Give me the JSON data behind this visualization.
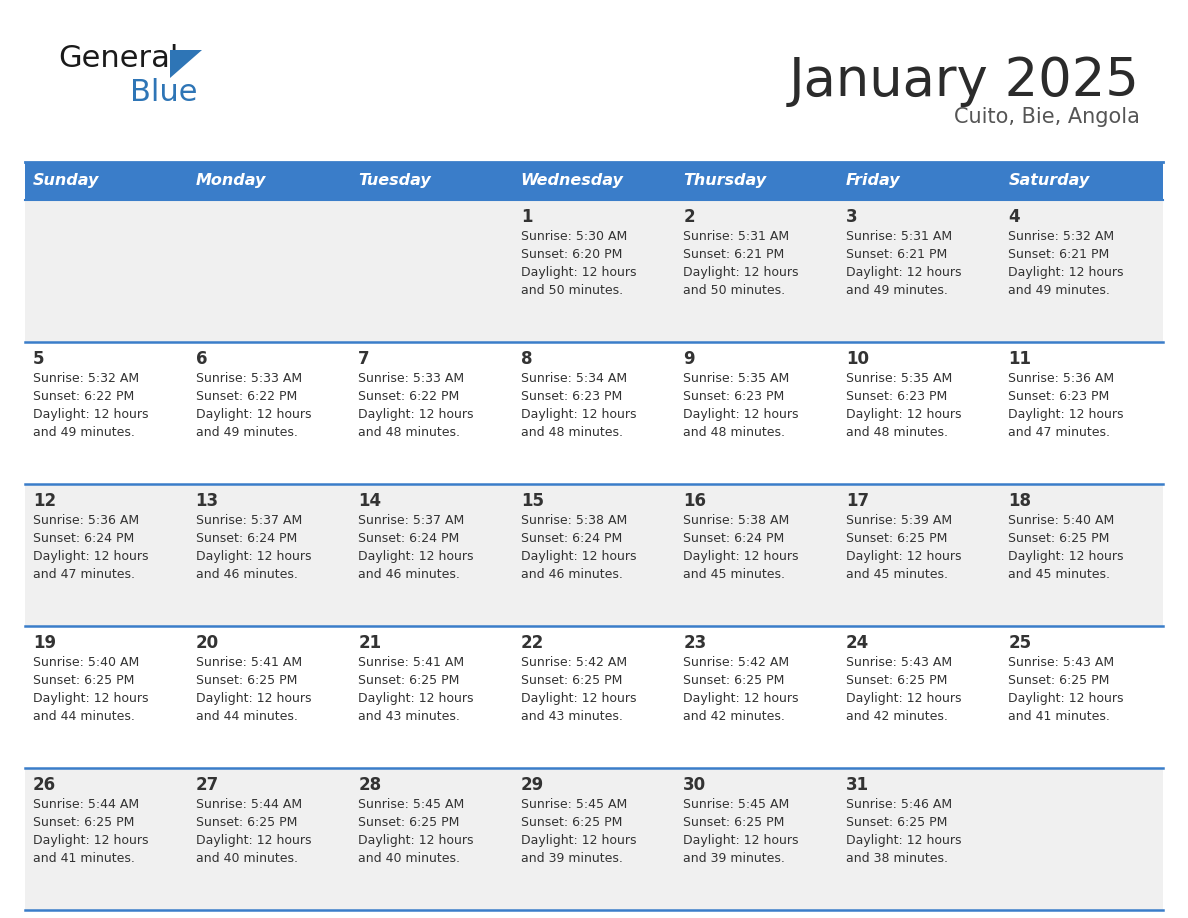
{
  "title": "January 2025",
  "subtitle": "Cuito, Bie, Angola",
  "days_of_week": [
    "Sunday",
    "Monday",
    "Tuesday",
    "Wednesday",
    "Thursday",
    "Friday",
    "Saturday"
  ],
  "header_bg": "#3A7DC9",
  "header_text": "#FFFFFF",
  "row_bg_odd": "#F0F0F0",
  "row_bg_even": "#FFFFFF",
  "cell_text": "#333333",
  "grid_line": "#3A7DC9",
  "title_color": "#2B2B2B",
  "subtitle_color": "#555555",
  "logo_general_color": "#1A1A1A",
  "logo_blue_color": "#2E75B6",
  "logo_triangle_color": "#2E75B6",
  "calendar_data": [
    [
      null,
      null,
      null,
      {
        "day": 1,
        "sunrise": "5:30 AM",
        "sunset": "6:20 PM",
        "daylight_hours": 12,
        "daylight_minutes": 50
      },
      {
        "day": 2,
        "sunrise": "5:31 AM",
        "sunset": "6:21 PM",
        "daylight_hours": 12,
        "daylight_minutes": 50
      },
      {
        "day": 3,
        "sunrise": "5:31 AM",
        "sunset": "6:21 PM",
        "daylight_hours": 12,
        "daylight_minutes": 49
      },
      {
        "day": 4,
        "sunrise": "5:32 AM",
        "sunset": "6:21 PM",
        "daylight_hours": 12,
        "daylight_minutes": 49
      }
    ],
    [
      {
        "day": 5,
        "sunrise": "5:32 AM",
        "sunset": "6:22 PM",
        "daylight_hours": 12,
        "daylight_minutes": 49
      },
      {
        "day": 6,
        "sunrise": "5:33 AM",
        "sunset": "6:22 PM",
        "daylight_hours": 12,
        "daylight_minutes": 49
      },
      {
        "day": 7,
        "sunrise": "5:33 AM",
        "sunset": "6:22 PM",
        "daylight_hours": 12,
        "daylight_minutes": 48
      },
      {
        "day": 8,
        "sunrise": "5:34 AM",
        "sunset": "6:23 PM",
        "daylight_hours": 12,
        "daylight_minutes": 48
      },
      {
        "day": 9,
        "sunrise": "5:35 AM",
        "sunset": "6:23 PM",
        "daylight_hours": 12,
        "daylight_minutes": 48
      },
      {
        "day": 10,
        "sunrise": "5:35 AM",
        "sunset": "6:23 PM",
        "daylight_hours": 12,
        "daylight_minutes": 48
      },
      {
        "day": 11,
        "sunrise": "5:36 AM",
        "sunset": "6:23 PM",
        "daylight_hours": 12,
        "daylight_minutes": 47
      }
    ],
    [
      {
        "day": 12,
        "sunrise": "5:36 AM",
        "sunset": "6:24 PM",
        "daylight_hours": 12,
        "daylight_minutes": 47
      },
      {
        "day": 13,
        "sunrise": "5:37 AM",
        "sunset": "6:24 PM",
        "daylight_hours": 12,
        "daylight_minutes": 46
      },
      {
        "day": 14,
        "sunrise": "5:37 AM",
        "sunset": "6:24 PM",
        "daylight_hours": 12,
        "daylight_minutes": 46
      },
      {
        "day": 15,
        "sunrise": "5:38 AM",
        "sunset": "6:24 PM",
        "daylight_hours": 12,
        "daylight_minutes": 46
      },
      {
        "day": 16,
        "sunrise": "5:38 AM",
        "sunset": "6:24 PM",
        "daylight_hours": 12,
        "daylight_minutes": 45
      },
      {
        "day": 17,
        "sunrise": "5:39 AM",
        "sunset": "6:25 PM",
        "daylight_hours": 12,
        "daylight_minutes": 45
      },
      {
        "day": 18,
        "sunrise": "5:40 AM",
        "sunset": "6:25 PM",
        "daylight_hours": 12,
        "daylight_minutes": 45
      }
    ],
    [
      {
        "day": 19,
        "sunrise": "5:40 AM",
        "sunset": "6:25 PM",
        "daylight_hours": 12,
        "daylight_minutes": 44
      },
      {
        "day": 20,
        "sunrise": "5:41 AM",
        "sunset": "6:25 PM",
        "daylight_hours": 12,
        "daylight_minutes": 44
      },
      {
        "day": 21,
        "sunrise": "5:41 AM",
        "sunset": "6:25 PM",
        "daylight_hours": 12,
        "daylight_minutes": 43
      },
      {
        "day": 22,
        "sunrise": "5:42 AM",
        "sunset": "6:25 PM",
        "daylight_hours": 12,
        "daylight_minutes": 43
      },
      {
        "day": 23,
        "sunrise": "5:42 AM",
        "sunset": "6:25 PM",
        "daylight_hours": 12,
        "daylight_minutes": 42
      },
      {
        "day": 24,
        "sunrise": "5:43 AM",
        "sunset": "6:25 PM",
        "daylight_hours": 12,
        "daylight_minutes": 42
      },
      {
        "day": 25,
        "sunrise": "5:43 AM",
        "sunset": "6:25 PM",
        "daylight_hours": 12,
        "daylight_minutes": 41
      }
    ],
    [
      {
        "day": 26,
        "sunrise": "5:44 AM",
        "sunset": "6:25 PM",
        "daylight_hours": 12,
        "daylight_minutes": 41
      },
      {
        "day": 27,
        "sunrise": "5:44 AM",
        "sunset": "6:25 PM",
        "daylight_hours": 12,
        "daylight_minutes": 40
      },
      {
        "day": 28,
        "sunrise": "5:45 AM",
        "sunset": "6:25 PM",
        "daylight_hours": 12,
        "daylight_minutes": 40
      },
      {
        "day": 29,
        "sunrise": "5:45 AM",
        "sunset": "6:25 PM",
        "daylight_hours": 12,
        "daylight_minutes": 39
      },
      {
        "day": 30,
        "sunrise": "5:45 AM",
        "sunset": "6:25 PM",
        "daylight_hours": 12,
        "daylight_minutes": 39
      },
      {
        "day": 31,
        "sunrise": "5:46 AM",
        "sunset": "6:25 PM",
        "daylight_hours": 12,
        "daylight_minutes": 38
      },
      null
    ]
  ]
}
